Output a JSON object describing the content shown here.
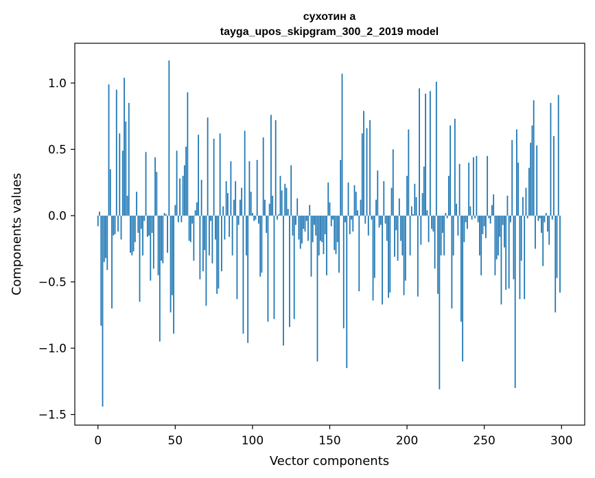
{
  "chart_data": {
    "type": "bar",
    "title": "сухотин а",
    "subtitle": "tayga_upos_skipgram_300_2_2019 model",
    "xlabel": "Vector components",
    "ylabel": "Components values",
    "xlim": [
      -15,
      315
    ],
    "ylim": [
      -1.58,
      1.3
    ],
    "x_ticks": [
      0,
      50,
      100,
      150,
      200,
      250,
      300
    ],
    "x_tick_labels": [
      "0",
      "50",
      "100",
      "150",
      "200",
      "250",
      "300"
    ],
    "y_ticks": [
      -1.5,
      -1.0,
      -0.5,
      0.0,
      0.5,
      1.0
    ],
    "y_tick_labels": [
      "−1.5",
      "−1.0",
      "−0.5",
      "0.0",
      "0.5",
      "1.0"
    ],
    "bar_color": "#1f77b4",
    "grid": false,
    "values": [
      -0.08,
      0.03,
      -0.83,
      -1.44,
      -0.35,
      -0.32,
      -0.41,
      0.99,
      0.35,
      -0.7,
      -0.15,
      -0.14,
      0.95,
      -0.12,
      0.62,
      -0.18,
      0.49,
      1.04,
      0.71,
      0.15,
      0.85,
      -0.28,
      -0.3,
      -0.27,
      -0.2,
      0.18,
      -0.13,
      -0.65,
      -0.1,
      -0.3,
      -0.04,
      0.48,
      -0.16,
      -0.15,
      -0.49,
      -0.13,
      -0.4,
      0.44,
      0.33,
      -0.45,
      -0.95,
      -0.34,
      -0.36,
      0.02,
      0.01,
      -0.28,
      1.17,
      -0.73,
      -0.6,
      -0.89,
      0.08,
      0.49,
      -0.05,
      0.28,
      -0.05,
      0.3,
      0.38,
      0.52,
      0.93,
      -0.19,
      -0.2,
      -0.06,
      -0.34,
      0.04,
      0.1,
      0.61,
      -0.48,
      0.27,
      -0.42,
      -0.26,
      -0.68,
      0.74,
      -0.3,
      -0.04,
      -0.36,
      0.58,
      -0.18,
      -0.59,
      -0.55,
      0.62,
      -0.42,
      0.07,
      -0.18,
      0.26,
      0.17,
      -0.16,
      0.41,
      -0.3,
      0.12,
      0.26,
      -0.63,
      -0.07,
      0.12,
      0.21,
      -0.89,
      0.64,
      -0.3,
      -0.96,
      0.41,
      0.18,
      0.02,
      -0.04,
      -0.03,
      0.42,
      -0.06,
      -0.46,
      -0.43,
      0.59,
      0.12,
      -0.13,
      -0.8,
      0.09,
      0.76,
      0.15,
      -0.78,
      0.72,
      -0.03,
      0.01,
      0.3,
      0.19,
      -0.98,
      0.24,
      0.21,
      0.05,
      -0.84,
      0.38,
      -0.15,
      -0.78,
      -0.07,
      0.13,
      -0.18,
      -0.25,
      -0.21,
      -0.1,
      -0.12,
      -0.04,
      -0.19,
      0.08,
      -0.46,
      -0.2,
      -0.07,
      -0.15,
      -1.1,
      -0.3,
      -0.19,
      -0.2,
      -0.29,
      -0.14,
      -0.45,
      0.25,
      0.1,
      -0.08,
      -0.03,
      -0.26,
      -0.29,
      -0.2,
      -0.43,
      0.42,
      1.07,
      -0.85,
      -0.05,
      -1.15,
      0.25,
      -0.14,
      -0.03,
      -0.12,
      0.23,
      0.18,
      0.04,
      -0.57,
      0.12,
      0.62,
      0.79,
      -0.06,
      0.66,
      -0.15,
      0.72,
      -0.03,
      -0.64,
      -0.47,
      0.12,
      0.34,
      -0.09,
      -0.07,
      -0.67,
      0.26,
      -0.06,
      -0.19,
      -0.62,
      -0.58,
      0.21,
      0.5,
      -0.31,
      -0.11,
      -0.34,
      0.13,
      -0.19,
      -0.3,
      -0.6,
      -0.49,
      0.3,
      0.65,
      -0.3,
      0.07,
      0.01,
      0.24,
      0.14,
      -0.61,
      0.96,
      -0.22,
      0.17,
      0.37,
      0.92,
      0.04,
      -0.2,
      0.94,
      -0.1,
      -0.12,
      -0.4,
      1.01,
      -0.59,
      -1.31,
      -0.3,
      -0.13,
      -0.3,
      0.02,
      -0.02,
      0.3,
      0.68,
      -0.7,
      -0.3,
      0.73,
      0.09,
      -0.15,
      0.39,
      -0.8,
      -1.1,
      -0.2,
      -0.05,
      -0.1,
      0.4,
      0.07,
      -0.03,
      0.44,
      -0.02,
      0.45,
      -0.05,
      -0.3,
      -0.45,
      -0.14,
      -0.08,
      -0.17,
      0.45,
      -0.02,
      -0.06,
      0.08,
      0.16,
      -0.45,
      -0.33,
      -0.3,
      -0.16,
      -0.67,
      -0.07,
      -0.24,
      -0.56,
      0.15,
      -0.55,
      -0.05,
      0.57,
      -0.48,
      -1.3,
      0.65,
      0.4,
      -0.63,
      -0.34,
      0.14,
      -0.63,
      0.21,
      -0.02,
      0.36,
      0.55,
      0.68,
      0.87,
      -0.25,
      0.53,
      -0.04,
      -0.02,
      -0.13,
      -0.38,
      -0.05,
      0.02,
      -0.12,
      -0.22,
      0.85,
      -0.03,
      0.6,
      -0.73,
      -0.47,
      0.91,
      -0.58
    ]
  }
}
